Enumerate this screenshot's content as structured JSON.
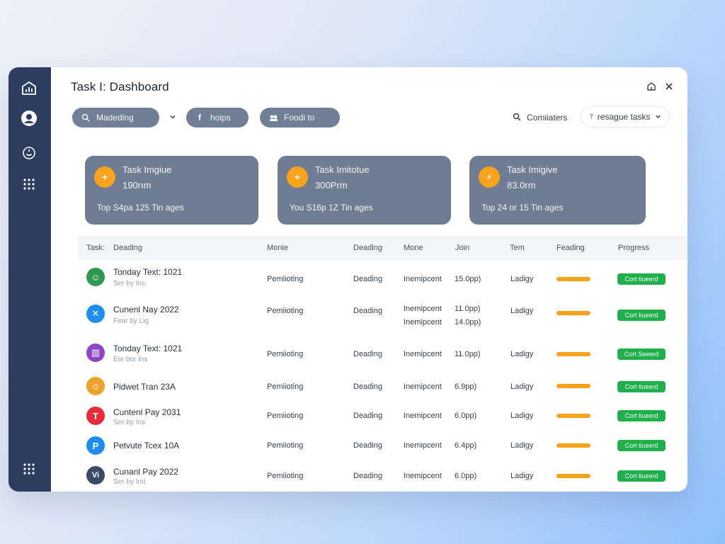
{
  "window": {
    "title": "Task I: Dashboard"
  },
  "sidebar": {
    "items": [
      {
        "icon": "chart-icon"
      },
      {
        "icon": "user-icon"
      },
      {
        "icon": "smile-icon"
      },
      {
        "icon": "grid-icon"
      },
      {
        "icon": "apps-icon"
      }
    ]
  },
  "toolbar": {
    "filter_pill": "Madeding",
    "second_pill": "hoips",
    "third_pill": "Foodi to",
    "link_label": "Comiiaters",
    "tasks_button": "resague tasks"
  },
  "cards": [
    {
      "title": "Task Imgiue",
      "value": "190rım",
      "footer": "Top S4pa 125 Tin ages",
      "icon_symbol": "+"
    },
    {
      "title": "Task Imitotue",
      "value": "300Prm",
      "footer": "You S16p 1Z Tin ages",
      "icon_symbol": "+"
    },
    {
      "title": "Task Imigive",
      "value": "83.0rm",
      "footer": "Top 24 or 15 Tin ages",
      "icon_symbol": "⚡"
    }
  ],
  "table": {
    "headers": {
      "task": "Task:",
      "name": "Deading",
      "col2": "Monie",
      "col3": "Deading",
      "col4": "Mone",
      "col5": "Join",
      "col6": "Tem",
      "col7": "Feading",
      "col8": "Progress"
    },
    "rows": [
      {
        "name": "Tonday Text: 1021",
        "sub": "Ser by Ins",
        "col2": "Pemiioting",
        "col3": "Deading",
        "col4": "Inemipcent",
        "col5": "15.0pp)",
        "col6": "Ladigy",
        "status": "Cort tiueerd",
        "avatar_color": "#2e9a4f",
        "avatar_text": "☺"
      },
      {
        "name": "Cunenl Nay 2022",
        "sub": "Fear by Lig",
        "col2": "Pemiioting",
        "col3": "Deading",
        "col4": "Inemipcent",
        "col4b": "Inemipcent",
        "col5": "11.0pp)",
        "col5b": "14.0pp)",
        "col6": "Ladigy",
        "status": "Cort Iiueerd",
        "avatar_color": "#1d8df0",
        "avatar_text": "✕"
      },
      {
        "name": "Tonday Text: 1021",
        "sub": "Esr bor Ins",
        "col2": "Pemiioting",
        "col3": "Deading",
        "col4": "Inemipcent",
        "col5": "11.0pp)",
        "col6": "Ladigy",
        "status": "Cort Seeerd",
        "avatar_color": "#8e44c6",
        "avatar_text": "▥"
      },
      {
        "name": "Pidwet Tran 23A",
        "sub": "",
        "col2": "Pemiioting",
        "col3": "Deading",
        "col4": "Inemipcent",
        "col5": "6.9pp)",
        "col6": "Ladigy",
        "status": "Cort tiueerd",
        "avatar_color": "#f0a32a",
        "avatar_text": "☺"
      },
      {
        "name": "Cuntenl Pay 2031",
        "sub": "Ser by Ins",
        "col2": "Pemiioting",
        "col3": "Deading",
        "col4": "Inemipcent",
        "col5": "6.0pp)",
        "col6": "Ladigy",
        "status": "Cort Iiueerd",
        "avatar_color": "#e82a3a",
        "avatar_text": "T"
      },
      {
        "name": "Petvute Tcex 10A",
        "sub": "",
        "col2": "Pemiioting",
        "col3": "Deading",
        "col4": "Inemipcent",
        "col5": "6.4pp)",
        "col6": "Ladigy",
        "status": "Cort tiueerd",
        "avatar_color": "#1d8df0",
        "avatar_text": "P"
      },
      {
        "name": "Cunanl Pay 2022",
        "sub": "Ser by Irst",
        "col2": "Pemiioting",
        "col3": "Deading",
        "col4": "Inemipcent",
        "col5": "6.0pp)",
        "col6": "Ladigy",
        "status": "Cort tiueerd",
        "avatar_color": "#3d4a63",
        "avatar_text": "Vi"
      }
    ]
  },
  "colors": {
    "sidebar": "#2d3d60",
    "pill": "#717f96",
    "card": "#6f7c92",
    "accent_orange": "#f7a31c",
    "status_green": "#20b04b"
  }
}
